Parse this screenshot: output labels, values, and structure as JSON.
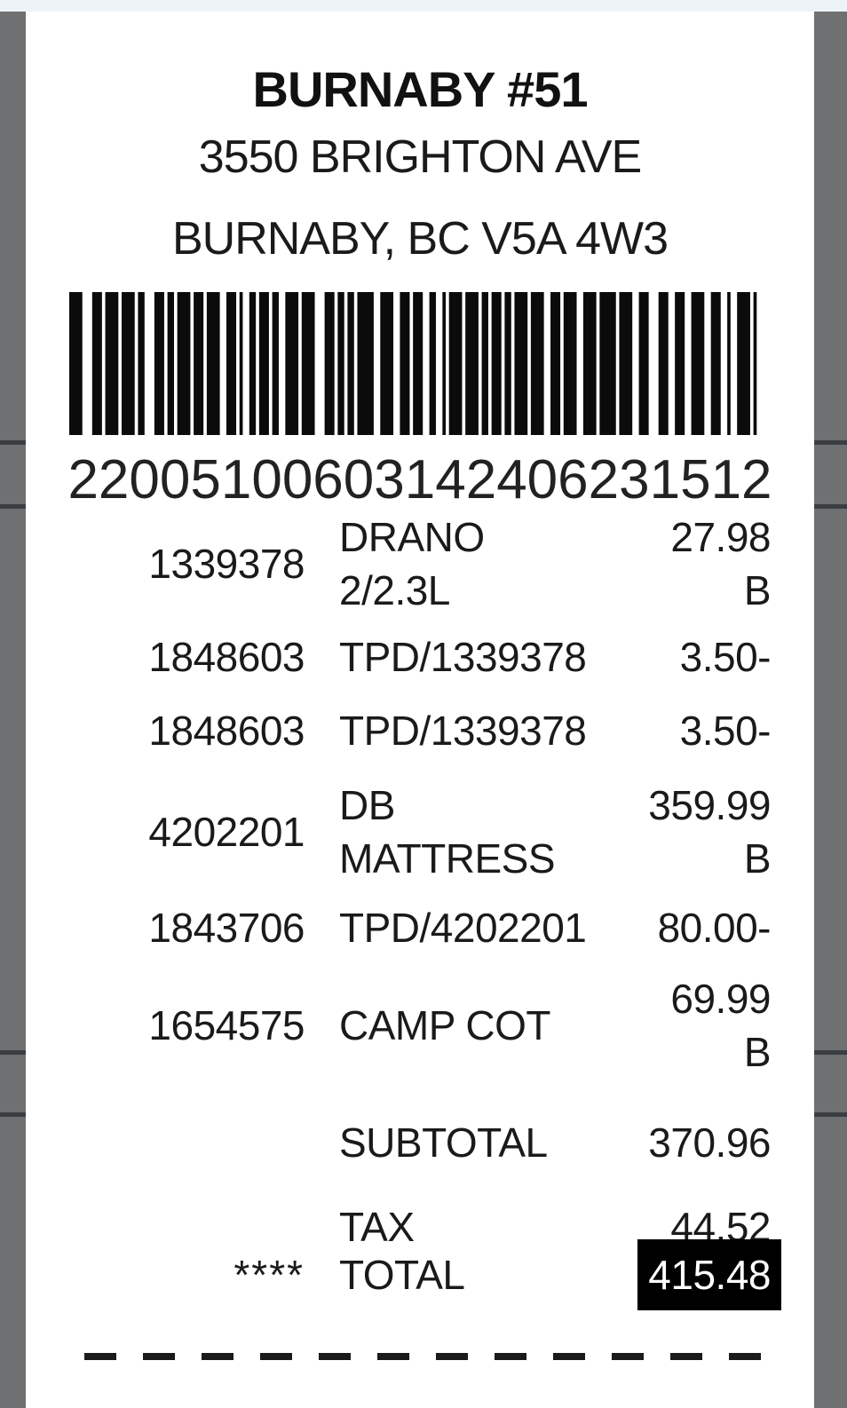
{
  "store": {
    "name": "BURNABY #51",
    "address_line1": "3550 BRIGHTON AVE",
    "address_line2": "BURNABY, BC V5A 4W3"
  },
  "barcode": {
    "value": "22005100603142406231512"
  },
  "items": [
    {
      "item_number": "1339378",
      "description_lines": [
        "DRANO",
        "2/2.3L"
      ],
      "price_lines": [
        "27.98",
        "B"
      ]
    },
    {
      "item_number": "1848603",
      "description_lines": [
        "TPD/1339378"
      ],
      "price_lines": [
        "3.50-"
      ]
    },
    {
      "item_number": "1848603",
      "description_lines": [
        "TPD/1339378"
      ],
      "price_lines": [
        "3.50-"
      ]
    },
    {
      "item_number": "4202201",
      "description_lines": [
        "DB",
        "MATTRESS"
      ],
      "price_lines": [
        "359.99",
        "B"
      ]
    },
    {
      "item_number": "1843706",
      "description_lines": [
        "TPD/4202201"
      ],
      "price_lines": [
        "80.00-"
      ]
    },
    {
      "item_number": "1654575",
      "description_lines": [
        "CAMP COT"
      ],
      "price_lines": [
        "69.99",
        "B"
      ]
    }
  ],
  "summary": {
    "subtotal_label": "SUBTOTAL",
    "subtotal_value": "370.96",
    "tax_label": "TAX",
    "tax_value": "44.52",
    "total_prefix": "****",
    "total_label": "TOTAL",
    "total_value": "415.48"
  },
  "colors": {
    "backdrop": "#6f7072",
    "backdrop_separator": "#3a3e41",
    "top_strip": "#edf3f6",
    "card": "#ffffff",
    "text": "#1a1a1a",
    "total_bg": "#000000",
    "total_text": "#ffffff"
  }
}
